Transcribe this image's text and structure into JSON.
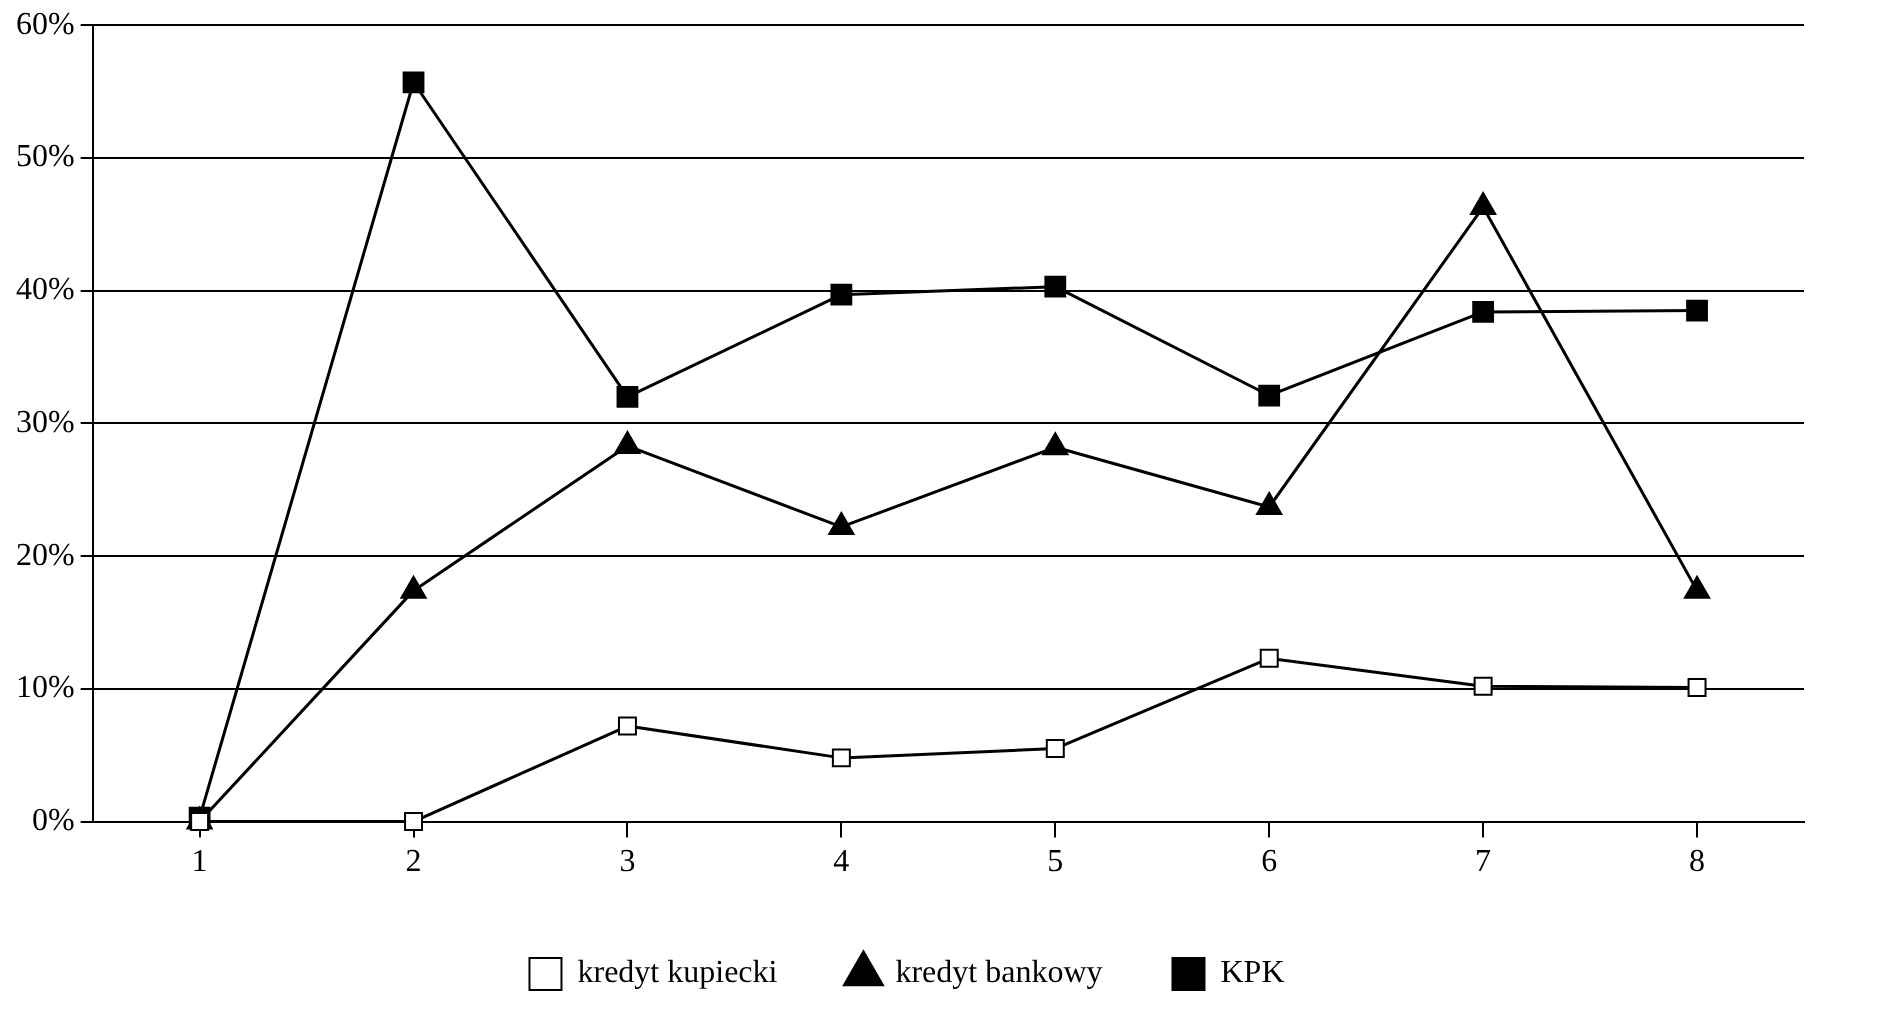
{
  "chart_data": {
    "type": "line",
    "categories": [
      "1",
      "2",
      "3",
      "4",
      "5",
      "6",
      "7",
      "8"
    ],
    "series": [
      {
        "name": "kredyt kupiecki",
        "color": "#000000",
        "marker": "square",
        "values": [
          0,
          0,
          7.2,
          4.8,
          5.5,
          12.3,
          10.2,
          10.1
        ]
      },
      {
        "name": "kredyt bankowy",
        "color": "#000000",
        "marker": "triangle",
        "values": [
          0,
          17.4,
          28.3,
          22.2,
          28.2,
          23.7,
          46.3,
          17.4
        ]
      },
      {
        "name": "KPK",
        "color": "#000000",
        "marker": "square",
        "values": [
          0.3,
          55.7,
          32.0,
          39.7,
          40.3,
          32.1,
          38.4,
          38.5
        ]
      }
    ],
    "ylim": [
      0,
      60
    ],
    "yticks": [
      {
        "value": 0,
        "label": "0%"
      },
      {
        "value": 10,
        "label": "10%"
      },
      {
        "value": 20,
        "label": "20%"
      },
      {
        "value": 30,
        "label": "30%"
      },
      {
        "value": 40,
        "label": "40%"
      },
      {
        "value": 50,
        "label": "50%"
      },
      {
        "value": 60,
        "label": "60%"
      }
    ],
    "grid": "y",
    "legend": "bottom",
    "line_style": "solid"
  }
}
